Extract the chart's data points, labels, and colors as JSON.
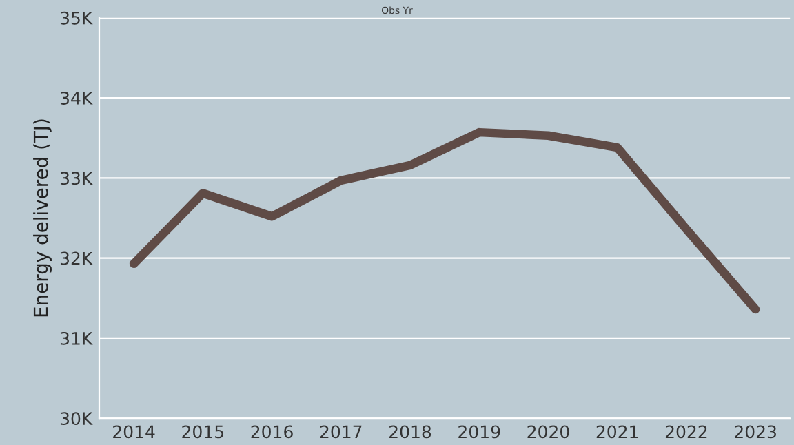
{
  "chart_data": {
    "type": "line",
    "title": "Obs Yr",
    "ylabel": "Energy delivered (TJ)",
    "categories": [
      "2014",
      "2015",
      "2016",
      "2017",
      "2018",
      "2019",
      "2020",
      "2021",
      "2022",
      "2023"
    ],
    "series": [
      {
        "color": "#5f4b46",
        "values": [
          31930,
          32810,
          32520,
          32970,
          33160,
          33570,
          33530,
          33380,
          32360,
          31360
        ]
      }
    ],
    "ylim": [
      30000,
      35000
    ],
    "yticks": [
      {
        "value": 30000,
        "label": "30K"
      },
      {
        "value": 31000,
        "label": "31K"
      },
      {
        "value": 32000,
        "label": "32K"
      },
      {
        "value": 33000,
        "label": "33K"
      },
      {
        "value": 34000,
        "label": "34K"
      },
      {
        "value": 35000,
        "label": "35K"
      }
    ],
    "grid": "y",
    "line_style": "solid",
    "marker": "none"
  }
}
